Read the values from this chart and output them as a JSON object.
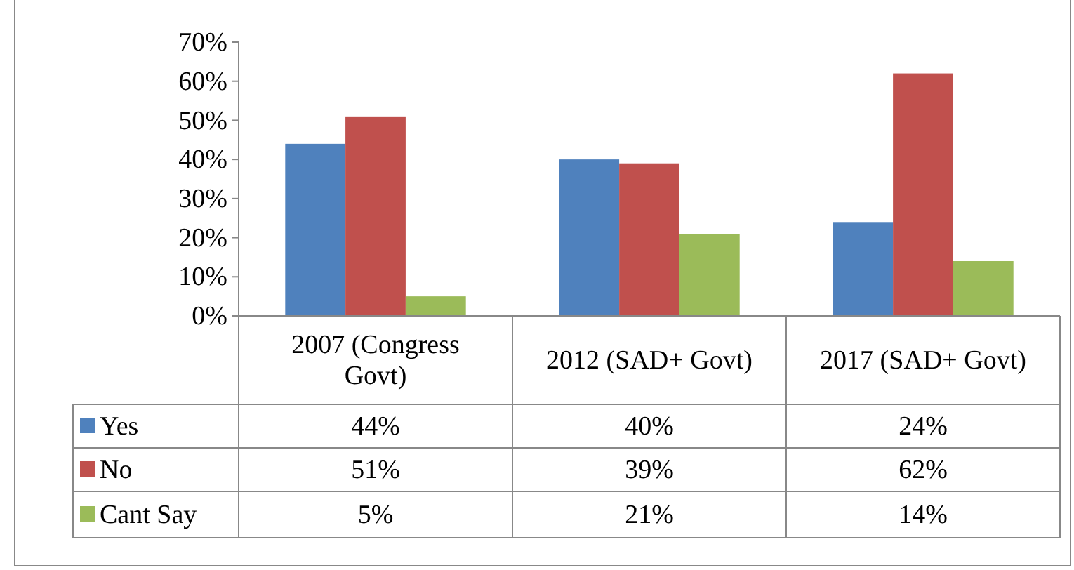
{
  "chart_data": {
    "type": "bar",
    "categories": [
      "2007 (Congress Govt)",
      "2012 (SAD+ Govt)",
      "2017 (SAD+ Govt)"
    ],
    "series": [
      {
        "name": "Yes",
        "color": "#4f81bd",
        "values": [
          44,
          40,
          24
        ],
        "value_labels": [
          "44%",
          "40%",
          "24%"
        ]
      },
      {
        "name": "No",
        "color": "#c0504d",
        "values": [
          51,
          39,
          62
        ],
        "value_labels": [
          "51%",
          "39%",
          "62%"
        ]
      },
      {
        "name": "Cant Say",
        "color": "#9bbb59",
        "values": [
          5,
          21,
          14
        ],
        "value_labels": [
          "5%",
          "21%",
          "14%"
        ]
      }
    ],
    "ylim": [
      0,
      70
    ],
    "yticks": [
      {
        "value": 0,
        "label": "0%"
      },
      {
        "value": 10,
        "label": "10%"
      },
      {
        "value": 20,
        "label": "20%"
      },
      {
        "value": 30,
        "label": "30%"
      },
      {
        "value": 40,
        "label": "40%"
      },
      {
        "value": 50,
        "label": "50%"
      },
      {
        "value": 60,
        "label": "60%"
      },
      {
        "value": 70,
        "label": "70%"
      }
    ],
    "legend": "bottom left",
    "grid": false
  }
}
